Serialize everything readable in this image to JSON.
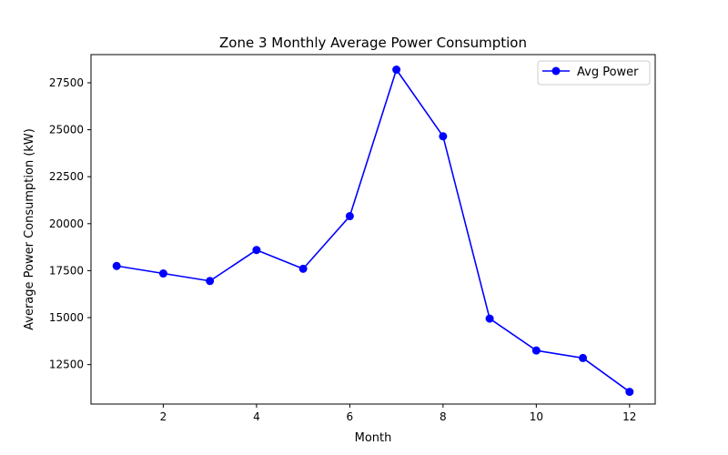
{
  "chart_data": {
    "type": "line",
    "title": "Zone 3 Monthly Average Power Consumption",
    "xlabel": "Month",
    "ylabel": "Average Power Consumption (kW)",
    "x": [
      1,
      2,
      3,
      4,
      5,
      6,
      7,
      8,
      9,
      10,
      11,
      12
    ],
    "x_ticks": [
      2,
      4,
      6,
      8,
      10,
      12
    ],
    "y_ticks": [
      12500,
      15000,
      17500,
      20000,
      22500,
      25000,
      27500
    ],
    "xlim": [
      0.45,
      12.55
    ],
    "ylim": [
      10400,
      29000
    ],
    "grid": false,
    "legend_position": "upper right",
    "series": [
      {
        "name": "Avg Power",
        "color": "#0000ff",
        "marker": "circle",
        "values": [
          17750,
          17350,
          16950,
          18600,
          17600,
          20400,
          28200,
          24650,
          14950,
          13250,
          12850,
          11050
        ]
      }
    ]
  }
}
